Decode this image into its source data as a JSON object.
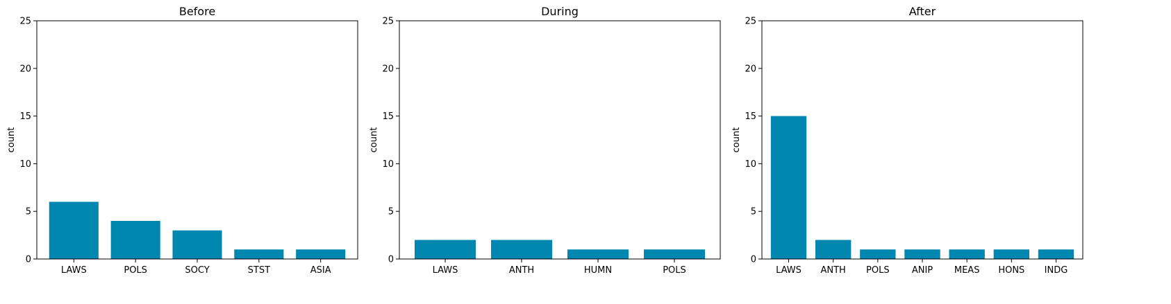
{
  "chart_data": [
    {
      "type": "bar",
      "title": "Before",
      "xlabel": "",
      "ylabel": "count",
      "ylim": [
        0,
        25
      ],
      "yticks": [
        0,
        5,
        10,
        15,
        20,
        25
      ],
      "categories": [
        "LAWS",
        "POLS",
        "SOCY",
        "STST",
        "ASIA"
      ],
      "values": [
        6,
        4,
        3,
        1,
        1
      ],
      "color": "#0087AF",
      "grid": false
    },
    {
      "type": "bar",
      "title": "During",
      "xlabel": "",
      "ylabel": "count",
      "ylim": [
        0,
        25
      ],
      "yticks": [
        0,
        5,
        10,
        15,
        20,
        25
      ],
      "categories": [
        "LAWS",
        "ANTH",
        "HUMN",
        "POLS"
      ],
      "values": [
        2,
        2,
        1,
        1
      ],
      "color": "#0087AF",
      "grid": false
    },
    {
      "type": "bar",
      "title": "After",
      "xlabel": "",
      "ylabel": "count",
      "ylim": [
        0,
        25
      ],
      "yticks": [
        0,
        5,
        10,
        15,
        20,
        25
      ],
      "categories": [
        "LAWS",
        "ANTH",
        "POLS",
        "ANIP",
        "MEAS",
        "HONS",
        "INDG"
      ],
      "values": [
        15,
        2,
        1,
        1,
        1,
        1,
        1
      ],
      "color": "#0087AF",
      "grid": false
    }
  ]
}
